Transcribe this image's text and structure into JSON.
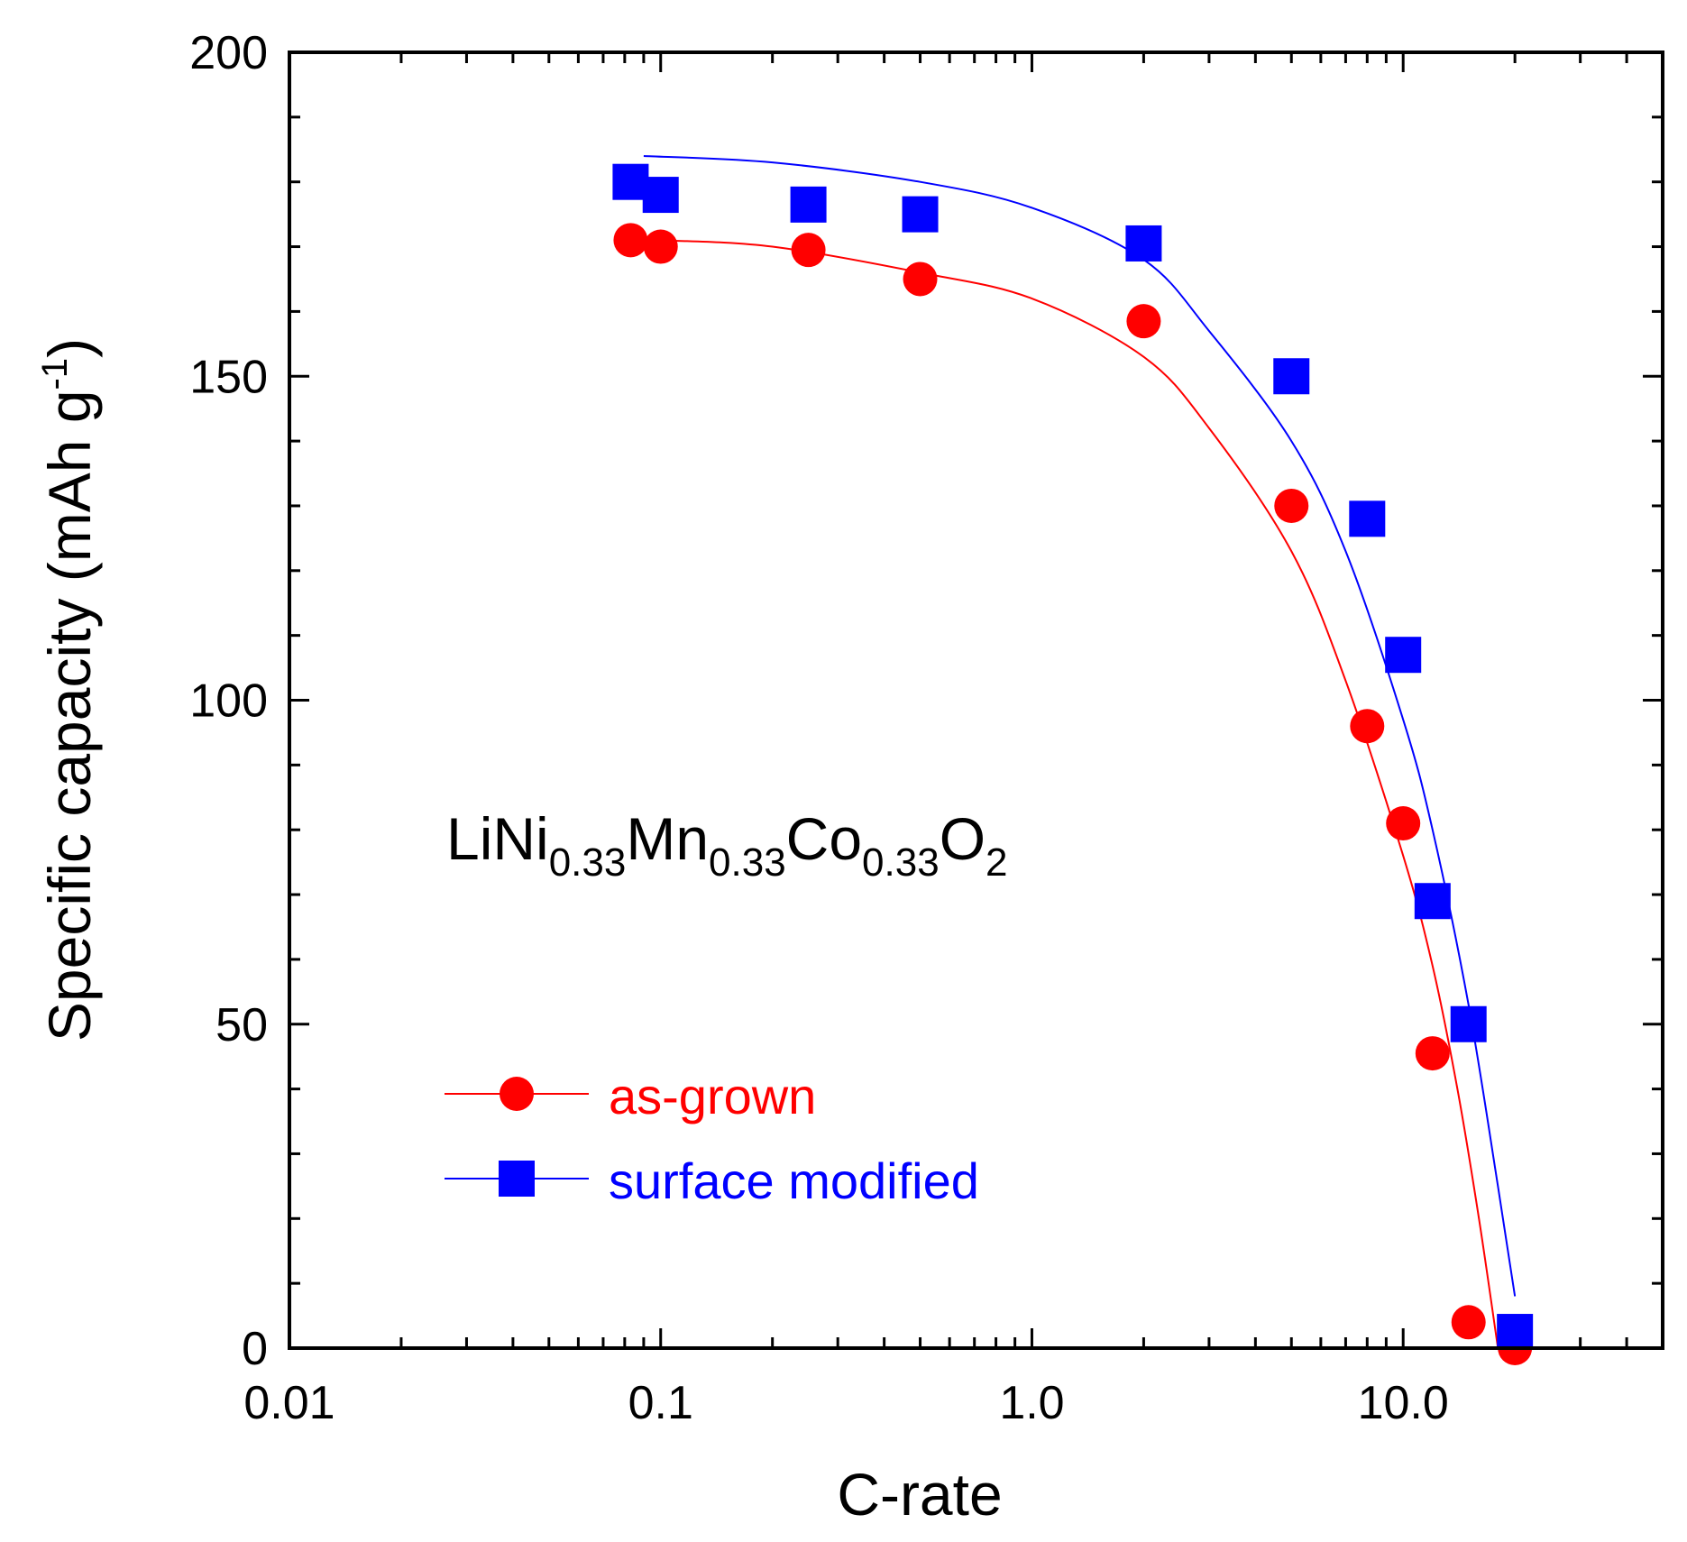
{
  "chart_data": {
    "type": "scatter",
    "title": "",
    "xlabel": "C-rate",
    "ylabel": "Specific capacity (mAh g",
    "ylabel_sup": "-1",
    "ylabel_close": ")",
    "xscale": "log",
    "xlim": [
      0.01,
      50
    ],
    "ylim": [
      0,
      200
    ],
    "x_ticks": [
      0.01,
      0.1,
      1,
      10
    ],
    "x_tick_labels": [
      "0.01",
      "0.1",
      "1.0",
      "10.0"
    ],
    "y_ticks": [
      0,
      50,
      100,
      150,
      200
    ],
    "y_tick_labels": [
      "0",
      "50",
      "100",
      "150",
      "200"
    ],
    "grid": false,
    "legend_position": "lower-left",
    "annotation": {
      "parts": [
        "LiNi",
        "0.33",
        "Mn",
        "0.33",
        "Co",
        "0.33",
        "O",
        "2"
      ],
      "subscript": [
        false,
        true,
        false,
        true,
        false,
        true,
        false,
        true
      ]
    },
    "series": [
      {
        "name": "as-grown",
        "color": "#ff0000",
        "marker": "circle",
        "x": [
          0.083,
          0.1,
          0.25,
          0.5,
          2,
          5,
          8,
          10,
          12,
          15,
          20
        ],
        "y": [
          171,
          170,
          169.5,
          165,
          158.5,
          130,
          96,
          81,
          45.5,
          4,
          0
        ],
        "fit_x": [
          0.1,
          0.2,
          0.5,
          1,
          2,
          3,
          5,
          7,
          10,
          12,
          14,
          16,
          18
        ],
        "fit_y": [
          171,
          170,
          166,
          162,
          153,
          142,
          123,
          103,
          76,
          59,
          40,
          20,
          0
        ]
      },
      {
        "name": "surface modified",
        "color": "#0000ff",
        "marker": "square",
        "x": [
          0.083,
          0.1,
          0.25,
          0.5,
          2,
          5,
          8,
          10,
          12,
          15,
          20
        ],
        "y": [
          180,
          178,
          176.5,
          175,
          170.5,
          150,
          128,
          107,
          69,
          50,
          2.5
        ],
        "fit_x": [
          0.09,
          0.2,
          0.5,
          1,
          2,
          3,
          5,
          7,
          10,
          12,
          15,
          18,
          20
        ],
        "fit_y": [
          184,
          183,
          180,
          176,
          168,
          157,
          140,
          123,
          97,
          80,
          53,
          25,
          8
        ]
      }
    ]
  }
}
